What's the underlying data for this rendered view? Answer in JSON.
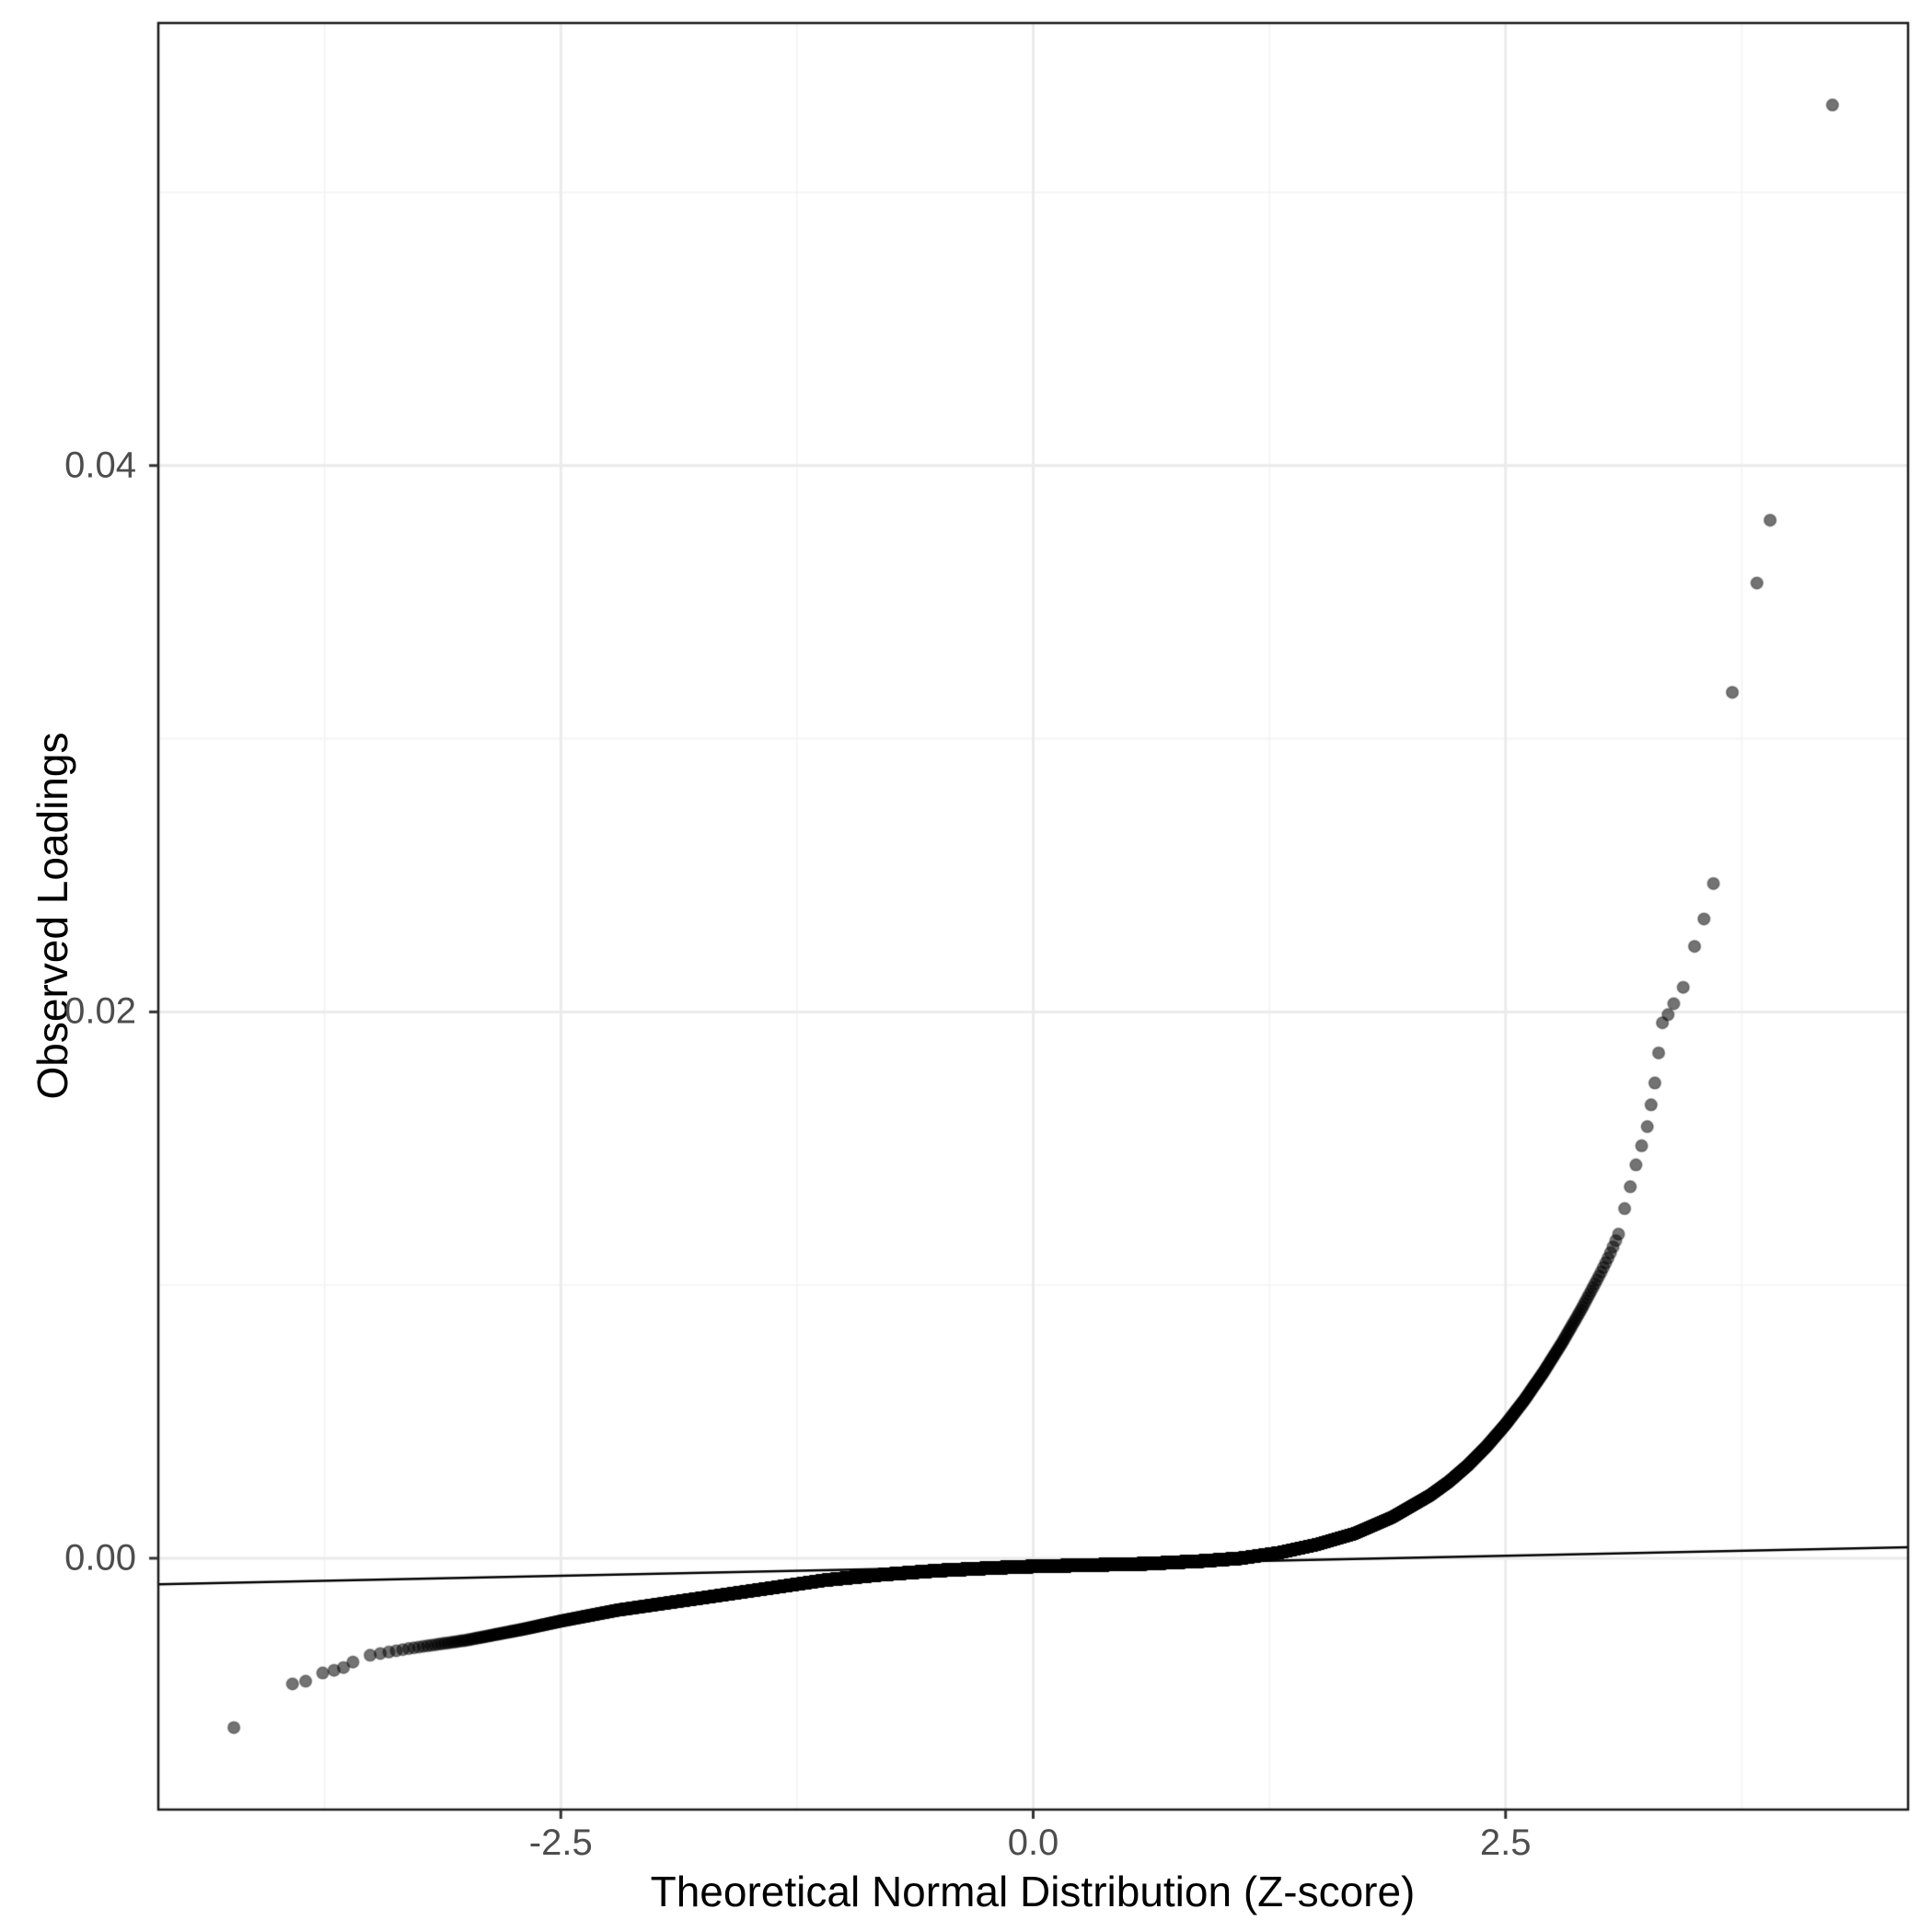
{
  "figure": {
    "background": "#FFFFFF",
    "panel": {
      "border_color": "#1A1A1A",
      "grid_major_color": "#EBEBEB",
      "grid_minor_color": "#F3F3F3",
      "tick_color": "#333333",
      "axis_text_color": "#4D4D4D",
      "axis_title_color": "#000000"
    }
  },
  "chart_data": {
    "type": "scatter",
    "title": "",
    "xlabel": "Theoretical Normal Distribution (Z-score)",
    "ylabel": "Observed Loadings",
    "xlim": [
      -4.63,
      4.63
    ],
    "ylim": [
      -0.0092,
      0.0562
    ],
    "grid": true,
    "legend": "none",
    "x_ticks": [
      {
        "value": -2.5,
        "label": "-2.5"
      },
      {
        "value": 0.0,
        "label": "0.0"
      },
      {
        "value": 2.5,
        "label": "2.5"
      }
    ],
    "y_ticks": [
      {
        "value": 0.0,
        "label": "0.00"
      },
      {
        "value": 0.02,
        "label": "0.02"
      },
      {
        "value": 0.04,
        "label": "0.04"
      }
    ],
    "x_minor_ticks": [
      -3.75,
      -1.25,
      1.25,
      3.75
    ],
    "y_minor_ticks": [
      0.01,
      0.03,
      0.05
    ],
    "marker": {
      "radius": 6.5,
      "fill": "rgba(0,0,0,0.55)",
      "stroke": "rgba(0,0,0,0.30)",
      "stroke_width": 1.5
    },
    "qq_band": {
      "description": "Dense Q-Q band: ~20000 normal quantile points whose observed values follow this monotone curve (z, observed loading)",
      "n_points": 20000,
      "z_min": -3.55,
      "z_max": 3.1,
      "curve_points": [
        [
          -3.55,
          -0.0036
        ],
        [
          -3.3,
          -0.0033
        ],
        [
          -3.0,
          -0.003
        ],
        [
          -2.7,
          -0.0026
        ],
        [
          -2.5,
          -0.0023
        ],
        [
          -2.2,
          -0.0019
        ],
        [
          -2.0,
          -0.0017
        ],
        [
          -1.7,
          -0.0014
        ],
        [
          -1.4,
          -0.0011
        ],
        [
          -1.1,
          -0.0008
        ],
        [
          -0.8,
          -0.0006
        ],
        [
          -0.5,
          -0.00045
        ],
        [
          -0.2,
          -0.00035
        ],
        [
          0.0,
          -0.0003
        ],
        [
          0.3,
          -0.00025
        ],
        [
          0.6,
          -0.0002
        ],
        [
          0.9,
          -0.0001
        ],
        [
          1.1,
          0.0
        ],
        [
          1.3,
          0.0002
        ],
        [
          1.5,
          0.0005
        ],
        [
          1.7,
          0.0009
        ],
        [
          1.9,
          0.0015
        ],
        [
          2.0,
          0.0019
        ],
        [
          2.1,
          0.0023
        ],
        [
          2.2,
          0.0028
        ],
        [
          2.3,
          0.0034
        ],
        [
          2.4,
          0.0041
        ],
        [
          2.5,
          0.0049
        ],
        [
          2.6,
          0.0058
        ],
        [
          2.7,
          0.0068
        ],
        [
          2.8,
          0.0079
        ],
        [
          2.9,
          0.0091
        ],
        [
          3.0,
          0.0104
        ],
        [
          3.05,
          0.0111
        ],
        [
          3.1,
          0.0119
        ]
      ]
    },
    "upper_outliers": [
      [
        3.13,
        0.0128
      ],
      [
        3.16,
        0.0136
      ],
      [
        3.19,
        0.0144
      ],
      [
        3.22,
        0.0151
      ],
      [
        3.25,
        0.0158
      ],
      [
        3.27,
        0.0166
      ],
      [
        3.29,
        0.0174
      ],
      [
        3.31,
        0.0185
      ],
      [
        3.33,
        0.0196
      ],
      [
        3.36,
        0.0199
      ],
      [
        3.39,
        0.0203
      ],
      [
        3.44,
        0.0209
      ],
      [
        3.5,
        0.0224
      ],
      [
        3.55,
        0.0234
      ],
      [
        3.6,
        0.0247
      ],
      [
        3.7,
        0.0317
      ],
      [
        3.83,
        0.0357
      ],
      [
        3.9,
        0.038
      ],
      [
        4.23,
        0.0532
      ]
    ],
    "lower_outliers": [
      [
        -4.23,
        -0.0062
      ],
      [
        -3.92,
        -0.0046
      ],
      [
        -3.85,
        -0.0045
      ],
      [
        -3.76,
        -0.0042
      ],
      [
        -3.7,
        -0.0041
      ],
      [
        -3.65,
        -0.004
      ],
      [
        -3.6,
        -0.0038
      ]
    ],
    "reference_line": {
      "x1": -4.63,
      "y1": -0.00095,
      "x2": 4.63,
      "y2": 0.0004,
      "color": "#000000",
      "width": 2.5
    }
  }
}
